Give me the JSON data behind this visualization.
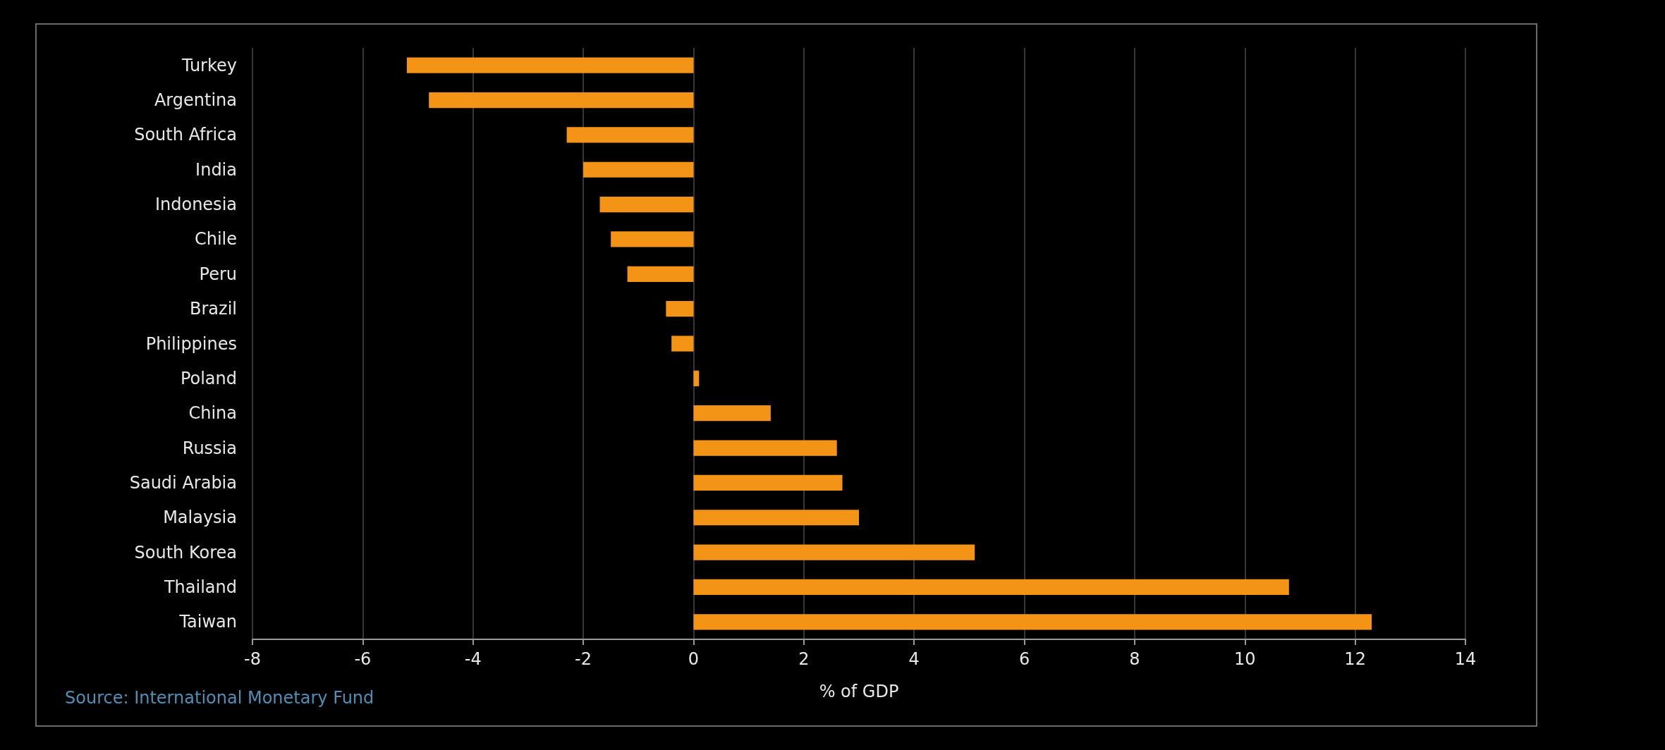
{
  "chart_data": {
    "type": "bar",
    "orientation": "horizontal",
    "xlabel": "% of GDP",
    "categories": [
      "Turkey",
      "Argentina",
      "South Africa",
      "India",
      "Indonesia",
      "Chile",
      "Peru",
      "Brazil",
      "Philippines",
      "Poland",
      "China",
      "Russia",
      "Saudi Arabia",
      "Malaysia",
      "South Korea",
      "Thailand",
      "Taiwan"
    ],
    "values": [
      -5.2,
      -4.8,
      -2.3,
      -2.0,
      -1.7,
      -1.5,
      -1.2,
      -0.5,
      -0.4,
      0.1,
      1.4,
      2.6,
      2.7,
      3.0,
      5.1,
      10.8,
      12.3
    ],
    "color": "#f39416",
    "xlim": [
      -8,
      14
    ],
    "xticks": [
      -8,
      -6,
      -4,
      -2,
      0,
      2,
      4,
      6,
      8,
      10,
      12,
      14
    ],
    "grid": "x",
    "annotations": [
      "Source: International Monetary Fund"
    ]
  }
}
